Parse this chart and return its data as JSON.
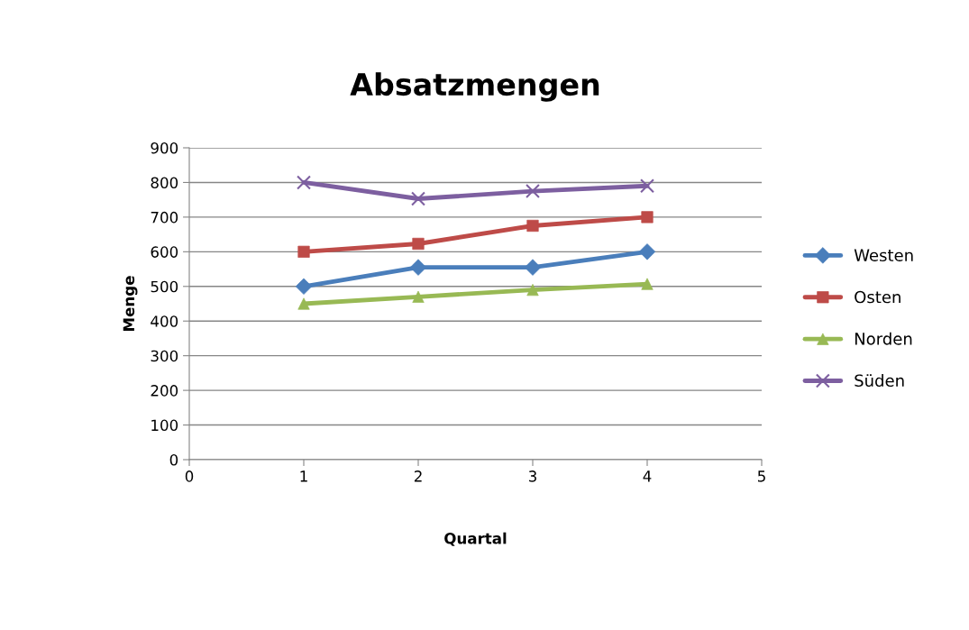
{
  "chart_data": {
    "type": "line",
    "title": "Absatzmengen",
    "xlabel": "Quartal",
    "ylabel": "Menge",
    "x": [
      1,
      2,
      3,
      4
    ],
    "series": [
      {
        "name": "Westen",
        "color": "#4a7ebb",
        "marker": "diamond",
        "values": [
          500,
          555,
          555,
          600
        ]
      },
      {
        "name": "Osten",
        "color": "#be4b48",
        "marker": "square",
        "values": [
          600,
          623,
          675,
          700
        ]
      },
      {
        "name": "Norden",
        "color": "#98b954",
        "marker": "triangle",
        "values": [
          450,
          470,
          490,
          507
        ]
      },
      {
        "name": "Süden",
        "color": "#7d5fa0",
        "marker": "cross",
        "values": [
          800,
          753,
          775,
          790
        ]
      }
    ],
    "xlim": [
      0,
      5
    ],
    "xticks": [
      0,
      1,
      2,
      3,
      4,
      5
    ],
    "ylim": [
      0,
      900
    ],
    "yticks": [
      0,
      100,
      200,
      300,
      400,
      500,
      600,
      700,
      800,
      900
    ],
    "grid": "y",
    "legend": "right",
    "line_style": "solid"
  }
}
